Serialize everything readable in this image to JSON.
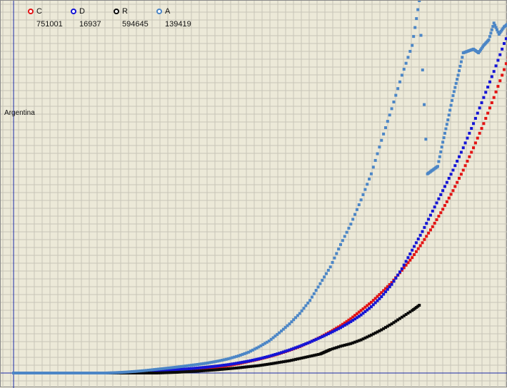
{
  "chart_data": {
    "type": "scatter",
    "country_label": "Argentina",
    "title": "",
    "xlabel": "",
    "ylabel": "",
    "grid": true,
    "legend_placement": "top-left",
    "colors": {
      "background": "#ece9d8",
      "grid": "#c8c5b8",
      "axis": "#1b2aa8"
    },
    "xlim": [
      0,
      480
    ],
    "ylim": [
      0,
      100
    ],
    "series": [
      {
        "name": "C",
        "value_label": "751001",
        "color": "#e31414",
        "points": [
          [
            0,
            0
          ],
          [
            10,
            0
          ],
          [
            20,
            0
          ],
          [
            30,
            0
          ],
          [
            40,
            0
          ],
          [
            50,
            0
          ],
          [
            60,
            0
          ],
          [
            70,
            0
          ],
          [
            80,
            0
          ],
          [
            90,
            0
          ],
          [
            100,
            0
          ],
          [
            110,
            0.05
          ],
          [
            120,
            0.1
          ],
          [
            130,
            0.2
          ],
          [
            140,
            0.3
          ],
          [
            150,
            0.45
          ],
          [
            160,
            0.6
          ],
          [
            170,
            0.8
          ],
          [
            180,
            1.0
          ],
          [
            190,
            1.25
          ],
          [
            200,
            1.6
          ],
          [
            210,
            2.0
          ],
          [
            220,
            2.5
          ],
          [
            230,
            3.1
          ],
          [
            240,
            3.7
          ],
          [
            250,
            4.4
          ],
          [
            260,
            5.2
          ],
          [
            270,
            6.1
          ],
          [
            280,
            7.1
          ],
          [
            290,
            8.3
          ],
          [
            300,
            9.6
          ],
          [
            310,
            11.1
          ],
          [
            320,
            12.7
          ],
          [
            330,
            14.6
          ],
          [
            340,
            16.8
          ],
          [
            350,
            19.0
          ],
          [
            360,
            21.6
          ],
          [
            370,
            24.3
          ],
          [
            380,
            27.6
          ],
          [
            390,
            31.0
          ],
          [
            400,
            35.0
          ],
          [
            410,
            39.3
          ],
          [
            420,
            44.0
          ],
          [
            430,
            49.0
          ],
          [
            440,
            54.5
          ],
          [
            450,
            60.5
          ],
          [
            460,
            67.0
          ],
          [
            470,
            74.0
          ],
          [
            480,
            81.5
          ],
          [
            490,
            89.5
          ],
          [
            500,
            97.5
          ]
        ]
      },
      {
        "name": "D",
        "value_label": "16937",
        "color": "#1515d6",
        "points": [
          [
            0,
            0
          ],
          [
            10,
            0
          ],
          [
            20,
            0
          ],
          [
            30,
            0
          ],
          [
            40,
            0
          ],
          [
            50,
            0
          ],
          [
            60,
            0
          ],
          [
            70,
            0
          ],
          [
            80,
            0
          ],
          [
            90,
            0
          ],
          [
            100,
            0
          ],
          [
            110,
            0.05
          ],
          [
            120,
            0.15
          ],
          [
            130,
            0.3
          ],
          [
            140,
            0.5
          ],
          [
            150,
            0.7
          ],
          [
            160,
            0.9
          ],
          [
            170,
            1.1
          ],
          [
            180,
            1.35
          ],
          [
            190,
            1.6
          ],
          [
            200,
            1.9
          ],
          [
            210,
            2.25
          ],
          [
            220,
            2.7
          ],
          [
            230,
            3.2
          ],
          [
            240,
            3.8
          ],
          [
            250,
            4.5
          ],
          [
            260,
            5.3
          ],
          [
            270,
            6.2
          ],
          [
            280,
            7.2
          ],
          [
            290,
            8.3
          ],
          [
            300,
            9.5
          ],
          [
            310,
            10.8
          ],
          [
            320,
            12.2
          ],
          [
            330,
            13.8
          ],
          [
            340,
            15.6
          ],
          [
            350,
            17.8
          ],
          [
            360,
            20.5
          ],
          [
            370,
            23.8
          ],
          [
            380,
            28.0
          ],
          [
            390,
            33.0
          ],
          [
            400,
            38.0
          ],
          [
            410,
            43.5
          ],
          [
            420,
            49.0
          ],
          [
            430,
            54.5
          ],
          [
            440,
            60.5
          ],
          [
            450,
            67.0
          ],
          [
            460,
            74.0
          ],
          [
            470,
            81.0
          ],
          [
            480,
            88.5
          ],
          [
            490,
            95.0
          ]
        ]
      },
      {
        "name": "R",
        "value_label": "594645",
        "color": "#0a0a0a",
        "points": [
          [
            0,
            0
          ],
          [
            10,
            0
          ],
          [
            20,
            0
          ],
          [
            30,
            0
          ],
          [
            40,
            0
          ],
          [
            50,
            0
          ],
          [
            60,
            0
          ],
          [
            70,
            0
          ],
          [
            80,
            0
          ],
          [
            90,
            0
          ],
          [
            100,
            0
          ],
          [
            110,
            0
          ],
          [
            120,
            0
          ],
          [
            130,
            0
          ],
          [
            140,
            0
          ],
          [
            150,
            0.1
          ],
          [
            160,
            0.2
          ],
          [
            170,
            0.35
          ],
          [
            180,
            0.5
          ],
          [
            190,
            0.7
          ],
          [
            200,
            0.9
          ],
          [
            210,
            1.15
          ],
          [
            220,
            1.4
          ],
          [
            230,
            1.7
          ],
          [
            240,
            2.0
          ],
          [
            250,
            2.4
          ],
          [
            260,
            2.85
          ],
          [
            270,
            3.3
          ],
          [
            280,
            3.9
          ],
          [
            290,
            4.5
          ],
          [
            300,
            5.1
          ],
          [
            305,
            5.7
          ],
          [
            310,
            6.3
          ],
          [
            320,
            7.2
          ],
          [
            330,
            7.9
          ],
          [
            340,
            8.9
          ],
          [
            350,
            10.2
          ],
          [
            360,
            11.6
          ],
          [
            370,
            13.2
          ],
          [
            380,
            15.0
          ],
          [
            390,
            16.8
          ],
          [
            397,
            18.2
          ]
        ]
      },
      {
        "name": "A",
        "value_label": "139419",
        "color": "#4c86c6",
        "points": [
          [
            0,
            0
          ],
          [
            10,
            0
          ],
          [
            20,
            0
          ],
          [
            30,
            0
          ],
          [
            40,
            0
          ],
          [
            50,
            0
          ],
          [
            60,
            0
          ],
          [
            70,
            0
          ],
          [
            80,
            0
          ],
          [
            90,
            0
          ],
          [
            100,
            0.1
          ],
          [
            110,
            0.25
          ],
          [
            120,
            0.45
          ],
          [
            130,
            0.7
          ],
          [
            140,
            1.0
          ],
          [
            150,
            1.3
          ],
          [
            160,
            1.6
          ],
          [
            170,
            1.95
          ],
          [
            180,
            2.3
          ],
          [
            190,
            2.7
          ],
          [
            200,
            3.2
          ],
          [
            210,
            3.8
          ],
          [
            220,
            4.6
          ],
          [
            230,
            5.6
          ],
          [
            240,
            7.0
          ],
          [
            250,
            8.6
          ],
          [
            260,
            10.8
          ],
          [
            270,
            13.2
          ],
          [
            280,
            16.0
          ],
          [
            290,
            19.5
          ],
          [
            300,
            24.0
          ],
          [
            310,
            28.5
          ],
          [
            320,
            34.5
          ],
          [
            330,
            40.0
          ],
          [
            340,
            46.5
          ],
          [
            350,
            53.5
          ],
          [
            360,
            62.5
          ],
          [
            370,
            71.0
          ],
          [
            380,
            80.0
          ],
          [
            390,
            88.0
          ],
          [
            397,
            100.0
          ],
          [
            405,
            53.5
          ],
          [
            410,
            54.5
          ],
          [
            415,
            55.5
          ],
          [
            420,
            62.0
          ],
          [
            425,
            68.0
          ],
          [
            430,
            74.5
          ],
          [
            435,
            80.0
          ],
          [
            440,
            86.0
          ],
          [
            445,
            86.5
          ],
          [
            450,
            87.0
          ],
          [
            455,
            86.0
          ],
          [
            460,
            88.0
          ],
          [
            465,
            89.5
          ],
          [
            470,
            94.0
          ],
          [
            475,
            91.0
          ],
          [
            480,
            93.0
          ],
          [
            485,
            94.0
          ],
          [
            490,
            96.5
          ]
        ]
      }
    ]
  }
}
